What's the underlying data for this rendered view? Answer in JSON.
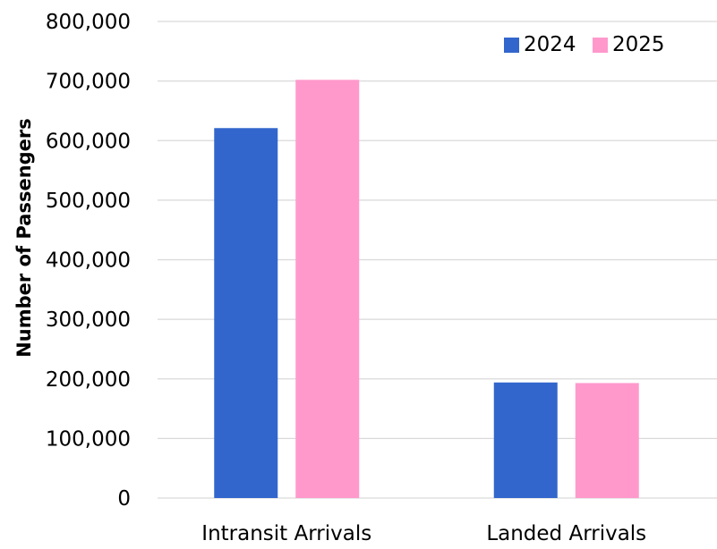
{
  "chart_data": {
    "type": "bar",
    "categories": [
      "Intransit Arrivals",
      "Landed Arrivals"
    ],
    "series": [
      {
        "name": "2024",
        "values": [
          621000,
          194000
        ],
        "color": "#3366cc"
      },
      {
        "name": "2025",
        "values": [
          702000,
          193000
        ],
        "color": "#ff99cc"
      }
    ],
    "ylabel": "Number of Passengers",
    "xlabel": "",
    "ylim": [
      0,
      800000
    ],
    "yticks": [
      0,
      100000,
      200000,
      300000,
      400000,
      500000,
      600000,
      700000,
      800000
    ],
    "ytick_labels": [
      "0",
      "100,000",
      "200,000",
      "300,000",
      "400,000",
      "500,000",
      "600,000",
      "700,000",
      "800,000"
    ],
    "grid": true,
    "legend_position": "top-right"
  }
}
